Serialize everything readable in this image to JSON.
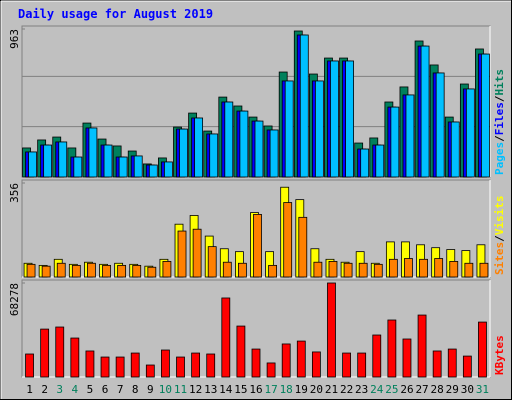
{
  "chart_data": [
    {
      "type": "bar",
      "title": "Daily usage for August 2019",
      "ylim": [
        0,
        963
      ],
      "yticks": [
        963
      ],
      "grid": true,
      "legend_separator": "/",
      "series": [
        {
          "name": "Hits",
          "color": "#00805c",
          "values": [
            189,
            241,
            260,
            189,
            351,
            247,
            202,
            169,
            85,
            124,
            325,
            416,
            299,
            520,
            462,
            390,
            332,
            683,
            950,
            670,
            774,
            774,
            221,
            254,
            488,
            586,
            885,
            729,
            390,
            605,
            833
          ]
        },
        {
          "name": "Files",
          "color": "#0000ff",
          "values": [
            163,
            208,
            228,
            130,
            319,
            208,
            130,
            137,
            78,
            98,
            312,
            384,
            280,
            488,
            429,
            364,
            306,
            625,
            924,
            625,
            755,
            755,
            182,
            208,
            455,
            534,
            852,
            677,
            358,
            573,
            800
          ]
        },
        {
          "name": "Pages",
          "color": "#00c0ff",
          "values": [
            163,
            208,
            228,
            130,
            319,
            208,
            130,
            137,
            78,
            98,
            312,
            384,
            280,
            488,
            429,
            364,
            306,
            625,
            924,
            625,
            755,
            755,
            182,
            208,
            455,
            534,
            852,
            677,
            358,
            573,
            800
          ]
        }
      ]
    },
    {
      "type": "bar",
      "ylim": [
        0,
        356
      ],
      "yticks": [
        356
      ],
      "grid": false,
      "legend_separator": "/",
      "series": [
        {
          "name": "Visits",
          "color": "#ffff00",
          "values": [
            52,
            44,
            67,
            48,
            56,
            48,
            52,
            48,
            41,
            67,
            200,
            233,
            155,
            107,
            96,
            244,
            96,
            340,
            293,
            107,
            67,
            56,
            96,
            52,
            133,
            133,
            122,
            111,
            104,
            100,
            122
          ]
        },
        {
          "name": "Sites",
          "color": "#ff8000",
          "values": [
            48,
            41,
            52,
            44,
            52,
            44,
            44,
            44,
            37,
            59,
            174,
            181,
            115,
            56,
            52,
            237,
            44,
            282,
            226,
            56,
            59,
            52,
            52,
            48,
            67,
            70,
            67,
            70,
            59,
            52,
            52
          ]
        }
      ]
    },
    {
      "type": "bar",
      "ylim": [
        0,
        68278
      ],
      "yticks": [
        68278
      ],
      "grid": false,
      "series": [
        {
          "name": "KBytes",
          "color": "#ff0000",
          "values": [
            16700,
            34800,
            36300,
            28300,
            18900,
            14500,
            14500,
            17400,
            8700,
            19600,
            14500,
            17400,
            16700,
            57400,
            37000,
            20300,
            10200,
            24000,
            26100,
            18200,
            68278,
            17400,
            17400,
            30500,
            41400,
            27600,
            45000,
            18900,
            20300,
            15200,
            39900
          ]
        }
      ],
      "categories": [
        "1",
        "2",
        "3",
        "4",
        "5",
        "6",
        "7",
        "8",
        "9",
        "10",
        "11",
        "12",
        "13",
        "14",
        "15",
        "16",
        "17",
        "18",
        "19",
        "20",
        "21",
        "22",
        "23",
        "24",
        "25",
        "26",
        "27",
        "28",
        "29",
        "30",
        "31"
      ],
      "category_colors": [
        "#000000",
        "#000000",
        "#00805c",
        "#00805c",
        "#000000",
        "#000000",
        "#000000",
        "#000000",
        "#000000",
        "#00805c",
        "#00805c",
        "#000000",
        "#000000",
        "#000000",
        "#000000",
        "#000000",
        "#00805c",
        "#00805c",
        "#000000",
        "#000000",
        "#000000",
        "#000000",
        "#000000",
        "#00805c",
        "#00805c",
        "#000000",
        "#000000",
        "#000000",
        "#000000",
        "#000000",
        "#00805c"
      ]
    }
  ]
}
